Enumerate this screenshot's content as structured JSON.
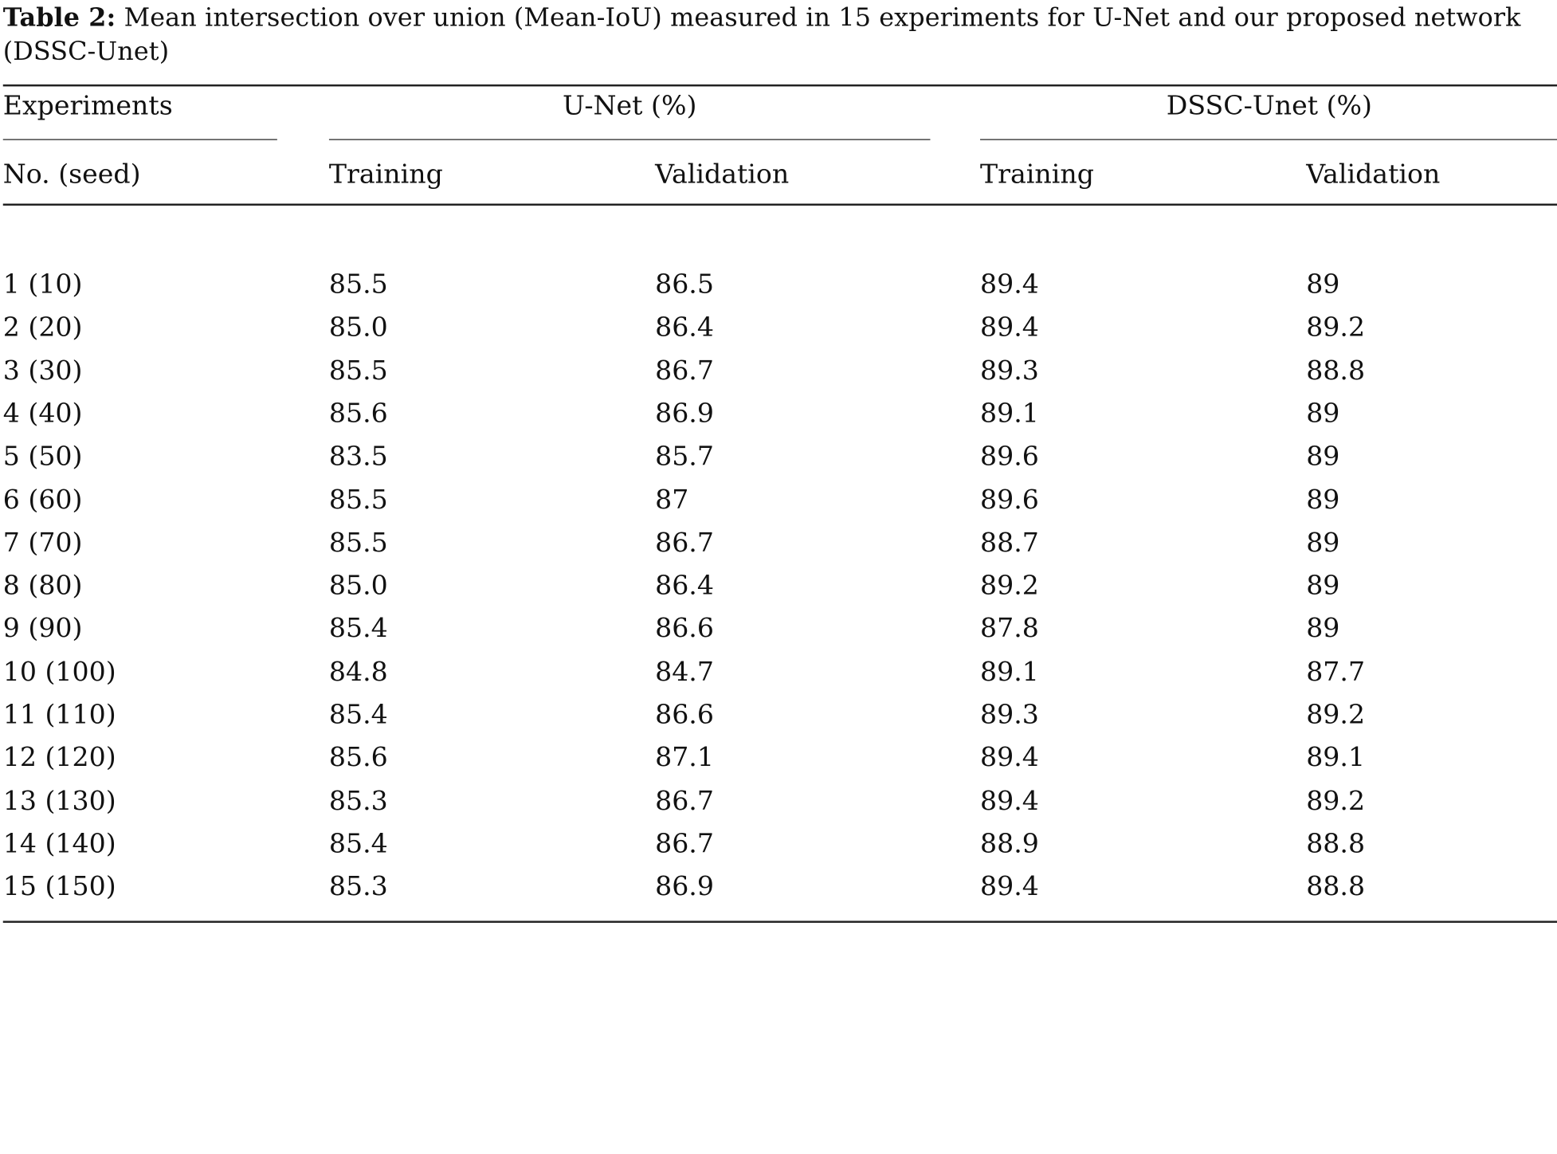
{
  "caption": {
    "label": "Table 2:",
    "text": "Mean intersection over union (Mean-IoU) measured in 15 experiments for U-Net and our proposed network (DSSC-Unet)"
  },
  "table": {
    "group_headers": {
      "experiments": "Experiments",
      "unet": "U-Net (%)",
      "dssc": "DSSC-Unet (%)"
    },
    "column_headers": {
      "no_seed": "No. (seed)",
      "unet_training": "Training",
      "unet_validation": "Validation",
      "dssc_training": "Training",
      "dssc_validation": "Validation"
    },
    "rows": [
      [
        "1 (10)",
        "85.5",
        "86.5",
        "89.4",
        "89"
      ],
      [
        "2 (20)",
        "85.0",
        "86.4",
        "89.4",
        "89.2"
      ],
      [
        "3 (30)",
        "85.5",
        "86.7",
        "89.3",
        "88.8"
      ],
      [
        "4 (40)",
        "85.6",
        "86.9",
        "89.1",
        "89"
      ],
      [
        "5 (50)",
        "83.5",
        "85.7",
        "89.6",
        "89"
      ],
      [
        "6 (60)",
        "85.5",
        "87",
        "89.6",
        "89"
      ],
      [
        "7 (70)",
        "85.5",
        "86.7",
        "88.7",
        "89"
      ],
      [
        "8 (80)",
        "85.0",
        "86.4",
        "89.2",
        "89"
      ],
      [
        "9 (90)",
        "85.4",
        "86.6",
        "87.8",
        "89"
      ],
      [
        "10 (100)",
        "84.8",
        "84.7",
        "89.1",
        "87.7"
      ],
      [
        "11 (110)",
        "85.4",
        "86.6",
        "89.3",
        "89.2"
      ],
      [
        "12 (120)",
        "85.6",
        "87.1",
        "89.4",
        "89.1"
      ],
      [
        "13 (130)",
        "85.3",
        "86.7",
        "89.4",
        "89.2"
      ],
      [
        "14 (140)",
        "85.4",
        "86.7",
        "88.9",
        "88.8"
      ],
      [
        "15 (150)",
        "85.3",
        "86.9",
        "89.4",
        "88.8"
      ]
    ]
  }
}
